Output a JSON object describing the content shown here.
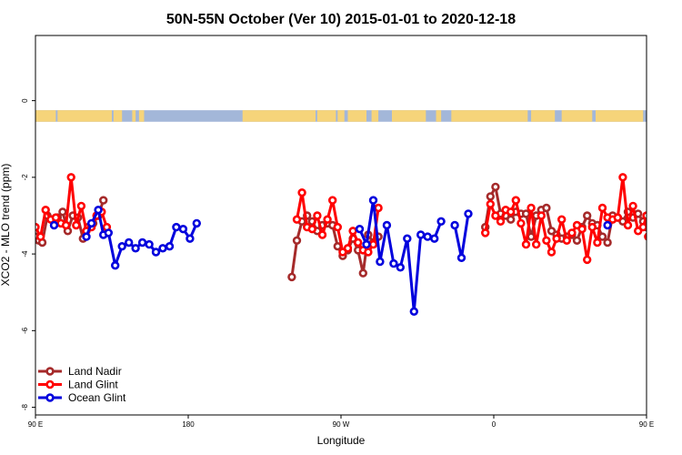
{
  "chart_data": {
    "type": "line",
    "title": "50N-55N October (Ver 10)   2015-01-01 to 2020-12-18",
    "xlabel": "Longitude",
    "ylabel": "XCO2 - MLO trend (ppm)",
    "xlim": [
      90,
      450
    ],
    "ylim": [
      -8.2,
      1.7
    ],
    "x_ticks": [
      {
        "value": 90,
        "label": "90 E"
      },
      {
        "value": 180,
        "label": "180"
      },
      {
        "value": 270,
        "label": "90 W"
      },
      {
        "value": 360,
        "label": "0"
      },
      {
        "value": 450,
        "label": "90 E"
      },
      {
        "value": 540,
        "label": "180"
      }
    ],
    "y_ticks": [
      {
        "value": 0,
        "label": "0"
      },
      {
        "value": -2,
        "label": "-2"
      },
      {
        "value": -4,
        "label": "-4"
      },
      {
        "value": -6,
        "label": "-6"
      },
      {
        "value": -8,
        "label": "-8"
      }
    ],
    "land_ocean_band": {
      "y_range": [
        -0.55,
        -0.25
      ],
      "ocean_color": "#a3b7d9",
      "land_color": "#f6d47a"
    },
    "legend_position": "bottom-left",
    "series": [
      {
        "name": "Land Nadir",
        "color": "#a52a2a",
        "points": [
          [
            90,
            -3.55
          ],
          [
            92,
            -3.65
          ],
          [
            94,
            -3.7
          ],
          [
            97,
            -3.0
          ],
          [
            100,
            -3.1
          ],
          [
            103,
            -3.05
          ],
          [
            106,
            -2.9
          ],
          [
            109,
            -3.4
          ],
          [
            112,
            -3.0
          ],
          [
            115,
            -3.05
          ],
          [
            118,
            -3.6
          ],
          [
            121,
            -3.3
          ],
          [
            124,
            -3.2
          ],
          [
            127,
            -3.0
          ],
          [
            130,
            -2.6
          ],
          [
            241,
            -4.6
          ],
          [
            244,
            -3.65
          ],
          [
            247,
            -3.15
          ],
          [
            250,
            -3.0
          ],
          [
            253,
            -3.15
          ],
          [
            256,
            -3.4
          ],
          [
            259,
            -3.25
          ],
          [
            262,
            -3.2
          ],
          [
            265,
            -3.25
          ],
          [
            268,
            -3.8
          ],
          [
            271,
            -4.05
          ],
          [
            274,
            -3.9
          ],
          [
            277,
            -3.6
          ],
          [
            280,
            -3.9
          ],
          [
            283,
            -4.5
          ],
          [
            286,
            -3.5
          ],
          [
            289,
            -3.7
          ],
          [
            292,
            -3.55
          ],
          [
            355,
            -3.3
          ],
          [
            358,
            -2.5
          ],
          [
            361,
            -2.25
          ],
          [
            364,
            -2.95
          ],
          [
            367,
            -3.0
          ],
          [
            370,
            -3.1
          ],
          [
            373,
            -2.9
          ],
          [
            376,
            -2.95
          ],
          [
            379,
            -2.95
          ],
          [
            382,
            -3.55
          ],
          [
            385,
            -3.0
          ],
          [
            388,
            -2.85
          ],
          [
            391,
            -2.8
          ],
          [
            394,
            -3.4
          ],
          [
            397,
            -3.5
          ],
          [
            400,
            -3.6
          ],
          [
            403,
            -3.55
          ],
          [
            406,
            -3.5
          ],
          [
            409,
            -3.65
          ],
          [
            412,
            -3.3
          ],
          [
            415,
            -3.0
          ],
          [
            418,
            -3.2
          ],
          [
            421,
            -3.25
          ],
          [
            424,
            -3.55
          ],
          [
            427,
            -3.7
          ],
          [
            430,
            -3.0
          ],
          [
            433,
            -3.05
          ],
          [
            436,
            -3.15
          ],
          [
            439,
            -2.9
          ],
          [
            442,
            -3.05
          ],
          [
            445,
            -2.95
          ],
          [
            448,
            -3.15
          ],
          [
            450,
            -3.3
          ],
          [
            451,
            -3.55
          ],
          [
            454,
            -3.65
          ],
          [
            457,
            -3.7
          ],
          [
            460,
            -3.0
          ],
          [
            463,
            -3.1
          ],
          [
            466,
            -3.05
          ],
          [
            469,
            -2.9
          ],
          [
            472,
            -3.4
          ],
          [
            475,
            -3.0
          ],
          [
            478,
            -3.05
          ],
          [
            481,
            -3.6
          ],
          [
            484,
            -3.3
          ],
          [
            487,
            -3.2
          ],
          [
            490,
            -3.0
          ],
          [
            493,
            -2.6
          ]
        ]
      },
      {
        "name": "Land Glint",
        "color": "#ff0000",
        "points": [
          [
            90,
            -3.3
          ],
          [
            93,
            -3.55
          ],
          [
            96,
            -2.85
          ],
          [
            99,
            -3.1
          ],
          [
            102,
            -3.05
          ],
          [
            105,
            -3.2
          ],
          [
            108,
            -3.25
          ],
          [
            111,
            -2.0
          ],
          [
            114,
            -3.25
          ],
          [
            117,
            -2.75
          ],
          [
            120,
            -3.4
          ],
          [
            123,
            -3.3
          ],
          [
            126,
            -3.0
          ],
          [
            129,
            -2.9
          ],
          [
            132,
            -3.3
          ],
          [
            244,
            -3.1
          ],
          [
            247,
            -2.4
          ],
          [
            250,
            -3.3
          ],
          [
            253,
            -3.35
          ],
          [
            256,
            -3.0
          ],
          [
            259,
            -3.5
          ],
          [
            262,
            -3.1
          ],
          [
            265,
            -2.6
          ],
          [
            268,
            -3.3
          ],
          [
            271,
            -3.95
          ],
          [
            274,
            -3.85
          ],
          [
            277,
            -3.4
          ],
          [
            280,
            -3.7
          ],
          [
            283,
            -3.9
          ],
          [
            286,
            -3.95
          ],
          [
            289,
            -3.75
          ],
          [
            292,
            -2.8
          ],
          [
            355,
            -3.45
          ],
          [
            358,
            -2.7
          ],
          [
            361,
            -3.0
          ],
          [
            364,
            -3.15
          ],
          [
            367,
            -2.85
          ],
          [
            370,
            -2.9
          ],
          [
            373,
            -2.6
          ],
          [
            376,
            -3.2
          ],
          [
            379,
            -3.75
          ],
          [
            382,
            -2.8
          ],
          [
            385,
            -3.75
          ],
          [
            388,
            -3.0
          ],
          [
            391,
            -3.65
          ],
          [
            394,
            -3.95
          ],
          [
            397,
            -3.6
          ],
          [
            400,
            -3.1
          ],
          [
            403,
            -3.65
          ],
          [
            406,
            -3.45
          ],
          [
            409,
            -3.25
          ],
          [
            412,
            -3.35
          ],
          [
            415,
            -4.15
          ],
          [
            418,
            -3.3
          ],
          [
            421,
            -3.7
          ],
          [
            424,
            -2.8
          ],
          [
            427,
            -3.05
          ],
          [
            430,
            -3.1
          ],
          [
            433,
            -3.05
          ],
          [
            436,
            -2.0
          ],
          [
            439,
            -3.25
          ],
          [
            442,
            -2.75
          ],
          [
            445,
            -3.4
          ],
          [
            448,
            -3.3
          ],
          [
            450,
            -3.0
          ],
          [
            451,
            -3.55
          ],
          [
            454,
            -2.85
          ],
          [
            457,
            -3.1
          ],
          [
            460,
            -3.05
          ],
          [
            463,
            -3.2
          ],
          [
            466,
            -3.25
          ],
          [
            469,
            -2.0
          ],
          [
            472,
            -3.25
          ],
          [
            475,
            -2.75
          ],
          [
            478,
            -3.4
          ],
          [
            481,
            -3.3
          ],
          [
            484,
            -3.0
          ],
          [
            487,
            -2.9
          ],
          [
            490,
            -3.3
          ]
        ]
      },
      {
        "name": "Ocean Glint",
        "color": "#0000dd",
        "points": [
          [
            101,
            -3.25
          ],
          [
            120,
            -3.55
          ],
          [
            123,
            -3.2
          ],
          [
            127,
            -2.85
          ],
          [
            130,
            -3.5
          ],
          [
            133,
            -3.45
          ],
          [
            137,
            -4.3
          ],
          [
            141,
            -3.8
          ],
          [
            145,
            -3.7
          ],
          [
            149,
            -3.85
          ],
          [
            153,
            -3.7
          ],
          [
            157,
            -3.75
          ],
          [
            161,
            -3.95
          ],
          [
            165,
            -3.85
          ],
          [
            169,
            -3.8
          ],
          [
            173,
            -3.3
          ],
          [
            177,
            -3.35
          ],
          [
            181,
            -3.6
          ],
          [
            185,
            -3.2
          ],
          [
            281,
            -3.35
          ],
          [
            285,
            -3.75
          ],
          [
            289,
            -2.6
          ],
          [
            293,
            -4.2
          ],
          [
            297,
            -3.25
          ],
          [
            301,
            -4.25
          ],
          [
            305,
            -4.35
          ],
          [
            309,
            -3.6
          ],
          [
            313,
            -5.5
          ],
          [
            317,
            -3.5
          ],
          [
            321,
            -3.55
          ],
          [
            325,
            -3.6
          ],
          [
            329,
            -3.15
          ],
          [
            337,
            -3.25
          ],
          [
            341,
            -4.1
          ],
          [
            345,
            -2.95
          ],
          [
            427,
            -3.25
          ],
          [
            465,
            -3.55
          ],
          [
            469,
            -3.2
          ],
          [
            472,
            -2.85
          ],
          [
            476,
            -3.5
          ],
          [
            479,
            -3.45
          ],
          [
            483,
            -4.3
          ],
          [
            487,
            -3.8
          ],
          [
            491,
            -3.7
          ]
        ]
      }
    ]
  }
}
